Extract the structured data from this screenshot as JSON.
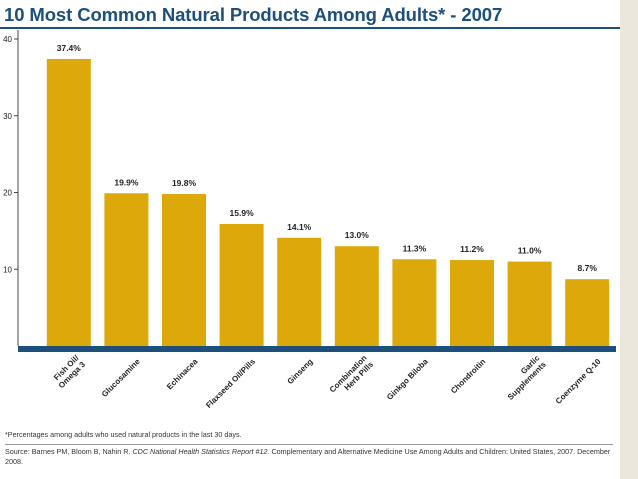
{
  "chart_data": {
    "type": "bar",
    "title": "10 Most Common Natural Products Among Adults* - 2007",
    "categories": [
      "Fish Oil/\nOmega 3",
      "Glucosamine",
      "Echinacea",
      "Flaxseed Oil/Pills",
      "Ginseng",
      "Combination\nHerb Pills",
      "Ginkgo Biloba",
      "Chondroitin",
      "Garlic\nSupplements",
      "Coenzyme Q-10"
    ],
    "values": [
      37.4,
      19.9,
      19.8,
      15.9,
      14.1,
      13.0,
      11.3,
      11.2,
      11.0,
      8.7
    ],
    "value_labels": [
      "37.4%",
      "19.9%",
      "19.8%",
      "15.9%",
      "14.1%",
      "13.0%",
      "11.3%",
      "11.2%",
      "11.0%",
      "8.7%"
    ],
    "yticks": [
      10,
      20,
      30,
      40
    ],
    "ylim": [
      0,
      40
    ],
    "xlabel": "",
    "ylabel": "",
    "grid": false,
    "bar_color": "#dca80a",
    "axis_color": "#1c4f7c"
  },
  "footnote": "*Percentages among adults who used natural products in the last 30 days.",
  "source": {
    "prefix": "Source: Barnes PM, Bloom B, Nahin R.",
    "report": "CDC National Health Statistics Report #12.",
    "suffix": "Complementary and Alternative Medicine Use Among Adults and Children: United States, 2007. December 2008."
  }
}
